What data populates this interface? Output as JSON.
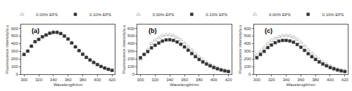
{
  "chart_data": [
    {
      "type": "scatter",
      "annotations": [
        "(a)"
      ],
      "xlabel": "Wavelength/nm",
      "ylabel": "Fluorescence intensity/a.u",
      "x": [
        300,
        305,
        310,
        315,
        320,
        325,
        330,
        335,
        340,
        345,
        350,
        355,
        360,
        365,
        370,
        375,
        380,
        385,
        390,
        395,
        400,
        405,
        410,
        415,
        420
      ],
      "series": [
        {
          "name": "0.00% EPS",
          "color": "#aaaaaa",
          "marker": "triangle-up-open",
          "values": [
            255,
            300,
            365,
            425,
            455,
            490,
            510,
            535,
            548,
            548,
            532,
            500,
            460,
            410,
            358,
            308,
            262,
            220,
            186,
            155,
            128,
            103,
            82,
            65,
            52
          ]
        },
        {
          "name": "0.10% EPS",
          "color": "#333333",
          "marker": "square",
          "values": [
            258,
            302,
            367,
            425,
            455,
            490,
            512,
            536,
            548,
            548,
            532,
            500,
            460,
            410,
            358,
            308,
            262,
            220,
            186,
            154,
            126,
            101,
            81,
            64,
            51
          ]
        }
      ],
      "xlim": [
        296,
        424
      ],
      "xticks": [
        300,
        320,
        340,
        360,
        380,
        400,
        420
      ],
      "ylim": [
        0,
        650
      ],
      "yticks": [
        0,
        100,
        200,
        300,
        400,
        500,
        600
      ],
      "grid": false,
      "legend": "upper right"
    },
    {
      "type": "scatter",
      "annotations": [
        "(b)"
      ],
      "xlabel": "Wavelength/nm",
      "ylabel": "Fluorescence intensity/a.u",
      "x": [
        300,
        305,
        310,
        315,
        320,
        325,
        330,
        335,
        340,
        345,
        350,
        355,
        360,
        365,
        370,
        375,
        380,
        385,
        390,
        395,
        400,
        405,
        410,
        415,
        420
      ],
      "series": [
        {
          "name": "0.00% EPS",
          "color": "#aaaaaa",
          "marker": "triangle-up-open",
          "values": [
            195,
            260,
            325,
            400,
            445,
            478,
            505,
            515,
            515,
            505,
            480,
            448,
            408,
            362,
            315,
            268,
            224,
            188,
            157,
            128,
            104,
            83,
            66,
            52,
            42
          ]
        },
        {
          "name": "0.10% EPS",
          "color": "#333333",
          "marker": "square",
          "values": [
            215,
            258,
            295,
            345,
            378,
            408,
            432,
            448,
            450,
            442,
            422,
            392,
            356,
            314,
            270,
            230,
            192,
            160,
            133,
            109,
            88,
            70,
            56,
            44,
            35
          ]
        }
      ],
      "xlim": [
        296,
        424
      ],
      "xticks": [
        300,
        320,
        340,
        360,
        380,
        400,
        420
      ],
      "ylim": [
        0,
        650
      ],
      "yticks": [
        0,
        100,
        200,
        300,
        400,
        500,
        600
      ],
      "grid": false,
      "legend": "upper right"
    },
    {
      "type": "scatter",
      "annotations": [
        "(c)"
      ],
      "xlabel": "Wavelength/nm",
      "ylabel": "Fluorescence intensity/a.u",
      "x": [
        300,
        305,
        310,
        315,
        320,
        325,
        330,
        335,
        340,
        345,
        350,
        355,
        360,
        365,
        370,
        375,
        380,
        385,
        390,
        395,
        400,
        405,
        410,
        415,
        420
      ],
      "series": [
        {
          "name": "0.00% EPS",
          "color": "#aaaaaa",
          "marker": "triangle-up-open",
          "values": [
            248,
            295,
            348,
            400,
            440,
            470,
            492,
            505,
            508,
            502,
            485,
            455,
            415,
            370,
            320,
            273,
            228,
            192,
            160,
            132,
            108,
            86,
            69,
            54,
            44
          ]
        },
        {
          "name": "0.10% EPS",
          "color": "#333333",
          "marker": "square",
          "values": [
            215,
            258,
            300,
            348,
            382,
            412,
            432,
            442,
            442,
            434,
            418,
            388,
            352,
            312,
            268,
            228,
            192,
            160,
            133,
            109,
            87,
            70,
            55,
            44,
            35
          ]
        }
      ],
      "xlim": [
        296,
        424
      ],
      "xticks": [
        300,
        320,
        340,
        360,
        380,
        400,
        420
      ],
      "ylim": [
        0,
        650
      ],
      "yticks": [
        0,
        100,
        200,
        300,
        400,
        500,
        600
      ],
      "grid": false,
      "legend": "upper right"
    }
  ]
}
